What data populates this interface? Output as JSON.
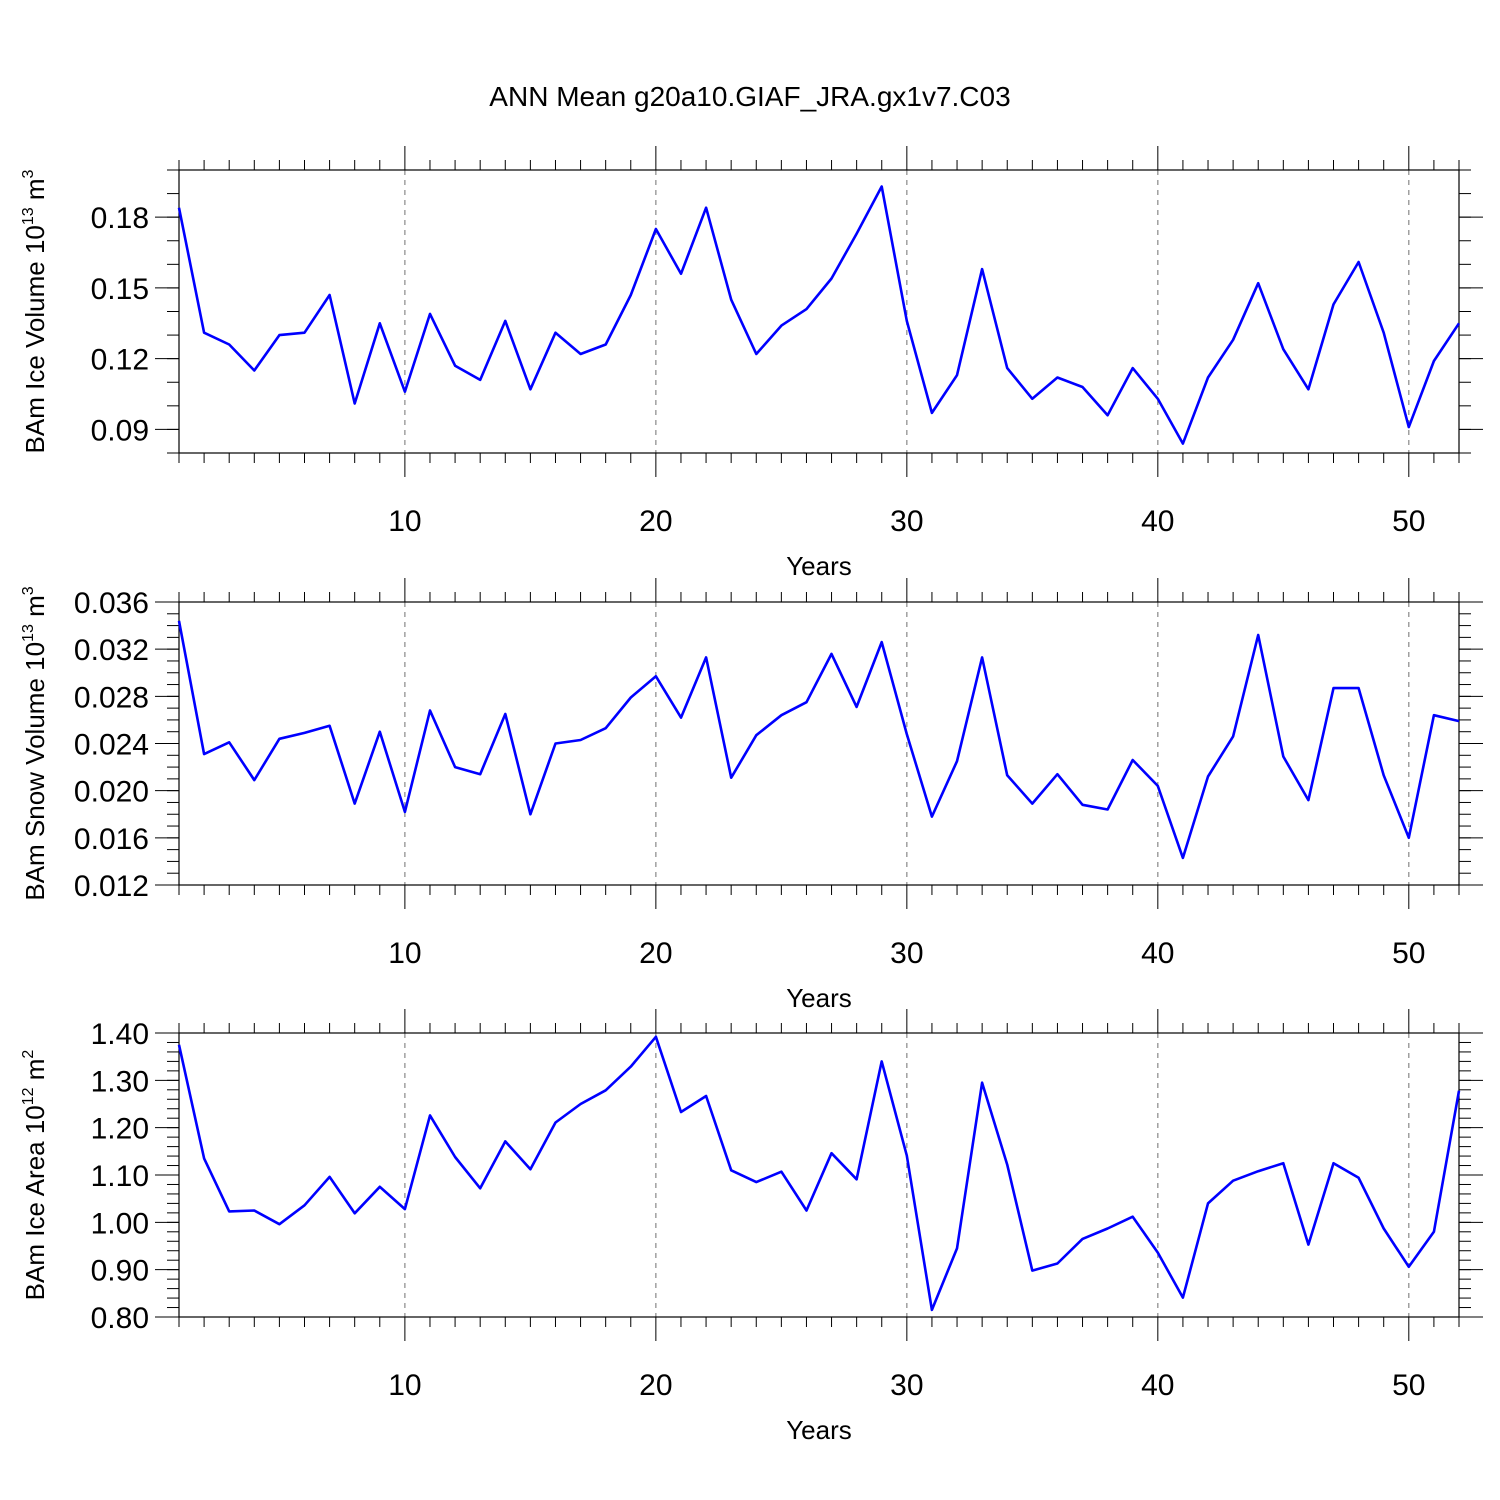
{
  "figure": {
    "title": "ANN Mean g20a10.GIAF_JRA.gx1v7.C03"
  },
  "chart_data": [
    {
      "type": "line",
      "xlabel": "Years",
      "ylabel": "BAm Ice Volume 10",
      "ylabel_exp": "13",
      "ylabel_unit": " m",
      "ylabel_unit_exp": "3",
      "xlim": [
        1,
        52
      ],
      "ylim": [
        0.08,
        0.2
      ],
      "xticks": [
        10,
        20,
        30,
        40,
        50
      ],
      "yticks": [
        0.09,
        0.12,
        0.15,
        0.18
      ],
      "ytick_labels": [
        "0.09",
        "0.12",
        "0.15",
        "0.18"
      ],
      "yminor": 0.01,
      "grid": "vertical dashed at major x ticks",
      "line_color": "#0000ff",
      "x": [
        1,
        2,
        3,
        4,
        5,
        6,
        7,
        8,
        9,
        10,
        11,
        12,
        13,
        14,
        15,
        16,
        17,
        18,
        19,
        20,
        21,
        22,
        23,
        24,
        25,
        26,
        27,
        28,
        29,
        30,
        31,
        32,
        33,
        34,
        35,
        36,
        37,
        38,
        39,
        40,
        41,
        42,
        43,
        44,
        45,
        46,
        47,
        48,
        49,
        50,
        51,
        52
      ],
      "values": [
        0.184,
        0.131,
        0.126,
        0.115,
        0.13,
        0.131,
        0.147,
        0.101,
        0.135,
        0.106,
        0.139,
        0.117,
        0.111,
        0.136,
        0.107,
        0.131,
        0.122,
        0.126,
        0.147,
        0.175,
        0.156,
        0.184,
        0.145,
        0.122,
        0.134,
        0.141,
        0.154,
        0.173,
        0.193,
        0.136,
        0.097,
        0.113,
        0.158,
        0.116,
        0.103,
        0.112,
        0.108,
        0.096,
        0.116,
        0.103,
        0.084,
        0.112,
        0.128,
        0.152,
        0.124,
        0.107,
        0.143,
        0.161,
        0.131,
        0.091,
        0.119,
        0.135
      ]
    },
    {
      "type": "line",
      "xlabel": "Years",
      "ylabel": "BAm Snow Volume 10",
      "ylabel_exp": "13",
      "ylabel_unit": " m",
      "ylabel_unit_exp": "3",
      "xlim": [
        1,
        52
      ],
      "ylim": [
        0.012,
        0.036
      ],
      "xticks": [
        10,
        20,
        30,
        40,
        50
      ],
      "yticks": [
        0.012,
        0.016,
        0.02,
        0.024,
        0.028,
        0.032,
        0.036
      ],
      "ytick_labels": [
        "0.012",
        "0.016",
        "0.020",
        "0.024",
        "0.028",
        "0.032",
        "0.036"
      ],
      "yminor": 0.001,
      "grid": "vertical dashed at major x ticks",
      "line_color": "#0000ff",
      "x": [
        1,
        2,
        3,
        4,
        5,
        6,
        7,
        8,
        9,
        10,
        11,
        12,
        13,
        14,
        15,
        16,
        17,
        18,
        19,
        20,
        21,
        22,
        23,
        24,
        25,
        26,
        27,
        28,
        29,
        30,
        31,
        32,
        33,
        34,
        35,
        36,
        37,
        38,
        39,
        40,
        41,
        42,
        43,
        44,
        45,
        46,
        47,
        48,
        49,
        50,
        51,
        52
      ],
      "values": [
        0.0344,
        0.0231,
        0.0241,
        0.0209,
        0.0244,
        0.0249,
        0.0255,
        0.0189,
        0.025,
        0.0182,
        0.0268,
        0.022,
        0.0214,
        0.0265,
        0.018,
        0.024,
        0.0243,
        0.0253,
        0.0279,
        0.0297,
        0.0262,
        0.0313,
        0.0211,
        0.0247,
        0.0264,
        0.0275,
        0.0316,
        0.0271,
        0.0326,
        0.0248,
        0.0178,
        0.0225,
        0.0313,
        0.0213,
        0.0189,
        0.0214,
        0.0188,
        0.0184,
        0.0226,
        0.0204,
        0.0143,
        0.0212,
        0.0246,
        0.0332,
        0.0229,
        0.0192,
        0.0287,
        0.0287,
        0.0213,
        0.016,
        0.0264,
        0.0259
      ]
    },
    {
      "type": "line",
      "xlabel": "Years",
      "ylabel": "BAm Ice Area 10",
      "ylabel_exp": "12",
      "ylabel_unit": " m",
      "ylabel_unit_exp": "2",
      "xlim": [
        1,
        52
      ],
      "ylim": [
        0.8,
        1.4
      ],
      "xticks": [
        10,
        20,
        30,
        40,
        50
      ],
      "yticks": [
        0.8,
        0.9,
        1.0,
        1.1,
        1.2,
        1.3,
        1.4
      ],
      "ytick_labels": [
        "0.80",
        "0.90",
        "1.00",
        "1.10",
        "1.20",
        "1.30",
        "1.40"
      ],
      "yminor": 0.02,
      "grid": "vertical dashed at major x ticks",
      "line_color": "#0000ff",
      "x": [
        1,
        2,
        3,
        4,
        5,
        6,
        7,
        8,
        9,
        10,
        11,
        12,
        13,
        14,
        15,
        16,
        17,
        18,
        19,
        20,
        21,
        22,
        23,
        24,
        25,
        26,
        27,
        28,
        29,
        30,
        31,
        32,
        33,
        34,
        35,
        36,
        37,
        38,
        39,
        40,
        41,
        42,
        43,
        44,
        45,
        46,
        47,
        48,
        49,
        50,
        51,
        52
      ],
      "values": [
        1.375,
        1.135,
        1.023,
        1.025,
        0.996,
        1.036,
        1.096,
        1.019,
        1.075,
        1.028,
        1.226,
        1.138,
        1.072,
        1.171,
        1.112,
        1.211,
        1.25,
        1.279,
        1.329,
        1.392,
        1.233,
        1.267,
        1.11,
        1.085,
        1.107,
        1.025,
        1.146,
        1.091,
        1.34,
        1.141,
        0.815,
        0.945,
        1.295,
        1.122,
        0.898,
        0.913,
        0.965,
        0.987,
        1.012,
        0.936,
        0.841,
        1.04,
        1.088,
        1.108,
        1.125,
        0.953,
        1.125,
        1.094,
        0.987,
        0.906,
        0.98,
        1.278
      ]
    }
  ]
}
